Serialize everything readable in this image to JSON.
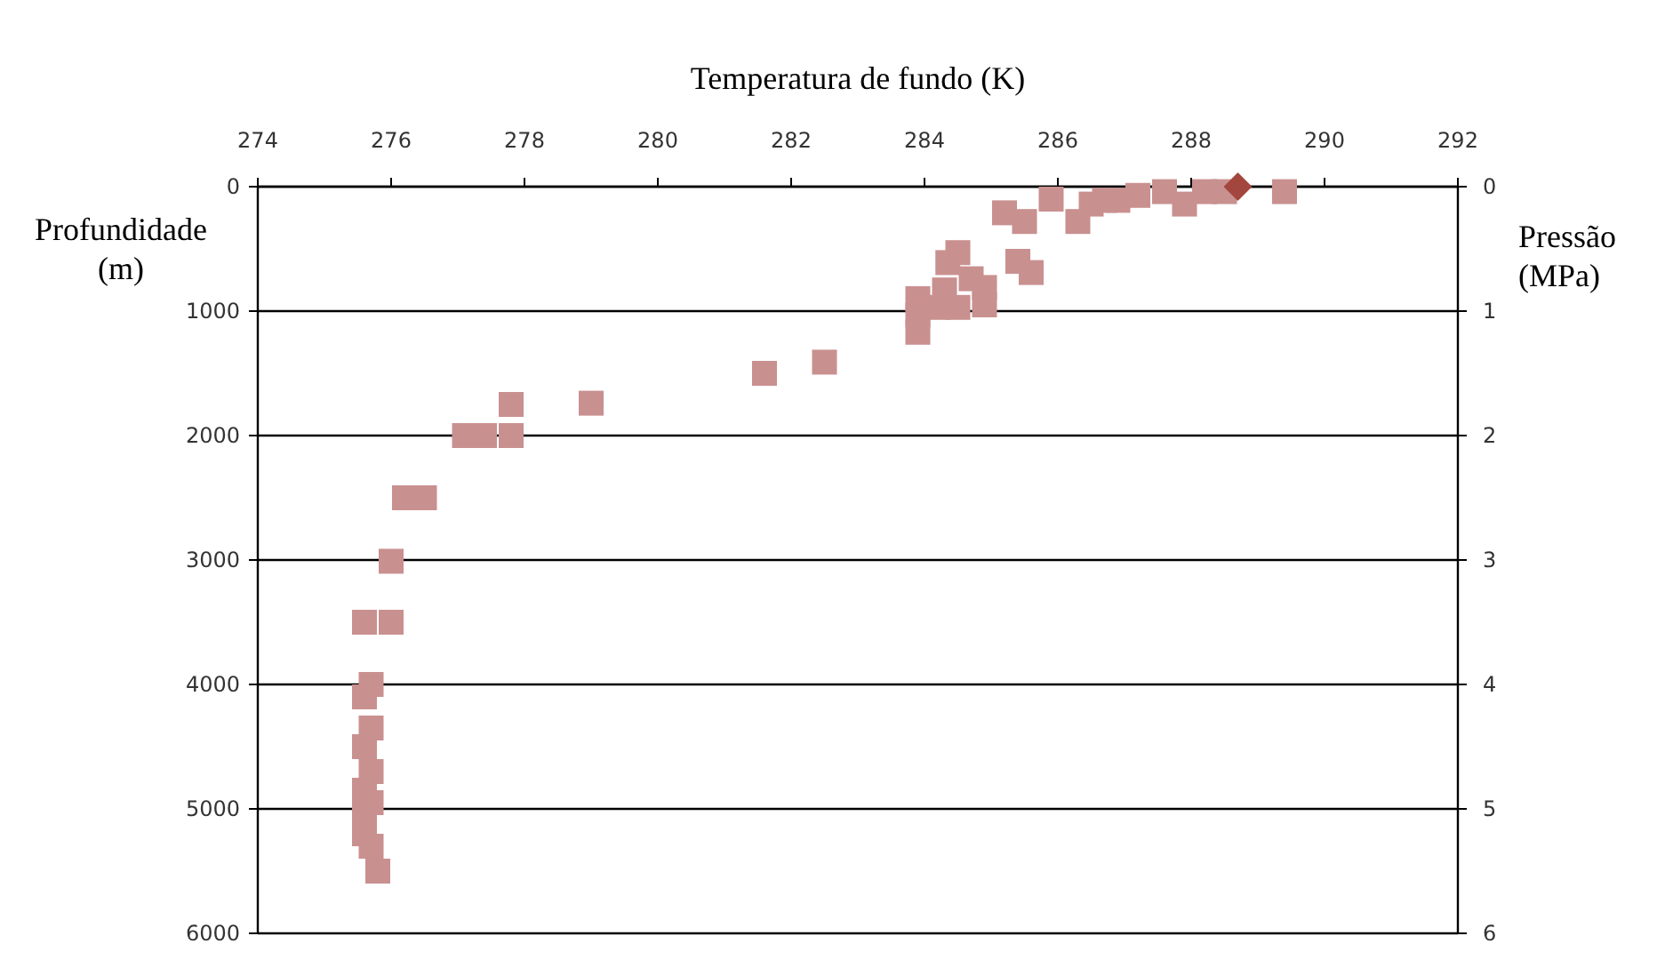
{
  "chart_data": {
    "type": "scatter",
    "xlabel": "Temperatura de fundo (K)",
    "ylabel": "Profundidade (m)",
    "y2label": "Pressão (MPa)",
    "xlim": [
      274,
      292
    ],
    "xticks": [
      274,
      276,
      278,
      280,
      282,
      284,
      286,
      288,
      290,
      292
    ],
    "ylim": [
      6000,
      0
    ],
    "yticks": [
      0,
      1000,
      2000,
      3000,
      4000,
      5000,
      6000
    ],
    "y2lim": [
      6,
      0
    ],
    "y2ticks": [
      0,
      1,
      2,
      3,
      4,
      5,
      6
    ],
    "grid": "y",
    "series": [
      {
        "color": "#c99090",
        "marker": "square",
        "x": [
          289.4,
          288.5,
          288.2,
          287.9,
          287.6,
          287.2,
          286.9,
          286.7,
          286.5,
          286.3,
          285.9,
          285.5,
          285.2,
          285.4,
          285.6,
          284.5,
          284.35,
          284.7,
          284.9,
          284.3,
          284.2,
          284.5,
          284.9,
          283.9,
          283.9,
          283.9,
          282.5,
          281.6,
          279.0,
          277.8,
          277.1,
          277.4,
          277.8,
          276.2,
          276.5,
          276.0,
          275.6,
          276.0,
          275.7,
          275.6,
          275.7,
          275.6,
          275.7,
          275.6,
          275.7,
          275.6,
          275.6,
          275.7,
          275.8
        ],
        "values": [
          40,
          40,
          40,
          140,
          40,
          70,
          110,
          110,
          140,
          280,
          100,
          280,
          210,
          600,
          690,
          530,
          610,
          740,
          810,
          830,
          970,
          970,
          950,
          900,
          1030,
          1170,
          1410,
          1500,
          1740,
          1750,
          2000,
          2000,
          2000,
          2500,
          2500,
          3010,
          3500,
          3500,
          4000,
          4100,
          4350,
          4500,
          4700,
          4850,
          4950,
          5050,
          5200,
          5300,
          5500
        ]
      },
      {
        "color": "#a2463e",
        "marker": "diamond",
        "x": [
          288.7
        ],
        "values": [
          0
        ]
      }
    ]
  }
}
